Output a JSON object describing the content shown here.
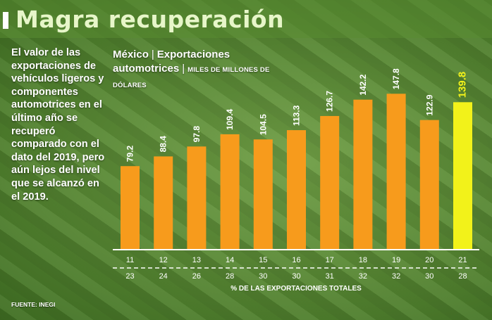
{
  "header": {
    "title": "Magra recuperación"
  },
  "description": "El valor de las exportaciones de vehículos ligeros y componentes automotrices en el último año se recuperó comparado con el dato del 2019, pero aún lejos del nivel que se alcanzó en el 2019.",
  "chart_title": {
    "country": "México",
    "subject": "Exportaciones automotrices",
    "unit": "MILES DE MILLONES DE DÓLARES"
  },
  "source": "FUENTE: INEGI",
  "colors": {
    "bar": "#f79b1c",
    "highlight_bar": "#f2f21a",
    "text": "#ffffff"
  },
  "chart_data": {
    "type": "bar",
    "title": "México | Exportaciones automotrices | MILES DE MILLONES DE DÓLARES",
    "categories": [
      "11",
      "12",
      "13",
      "14",
      "15",
      "16",
      "17",
      "18",
      "19",
      "20",
      "21"
    ],
    "values": [
      79.2,
      88.4,
      97.8,
      109.4,
      104.5,
      113.3,
      126.7,
      142.2,
      147.8,
      122.9,
      139.8
    ],
    "value_labels": [
      "79.2",
      "88.4",
      "97.8",
      "109.4",
      "104.5",
      "113.3",
      "126.7",
      "142.2",
      "147.8",
      "122.9",
      "139.8"
    ],
    "secondary_row": {
      "label": "% DE LAS EXPORTACIONES TOTALES",
      "values": [
        "23",
        "24",
        "26",
        "28",
        "30",
        "30",
        "31",
        "32",
        "32",
        "30",
        "28"
      ]
    },
    "highlight_category": "21",
    "ylim": [
      0,
      150
    ],
    "xlabel": "",
    "ylabel": "",
    "grid": false
  }
}
